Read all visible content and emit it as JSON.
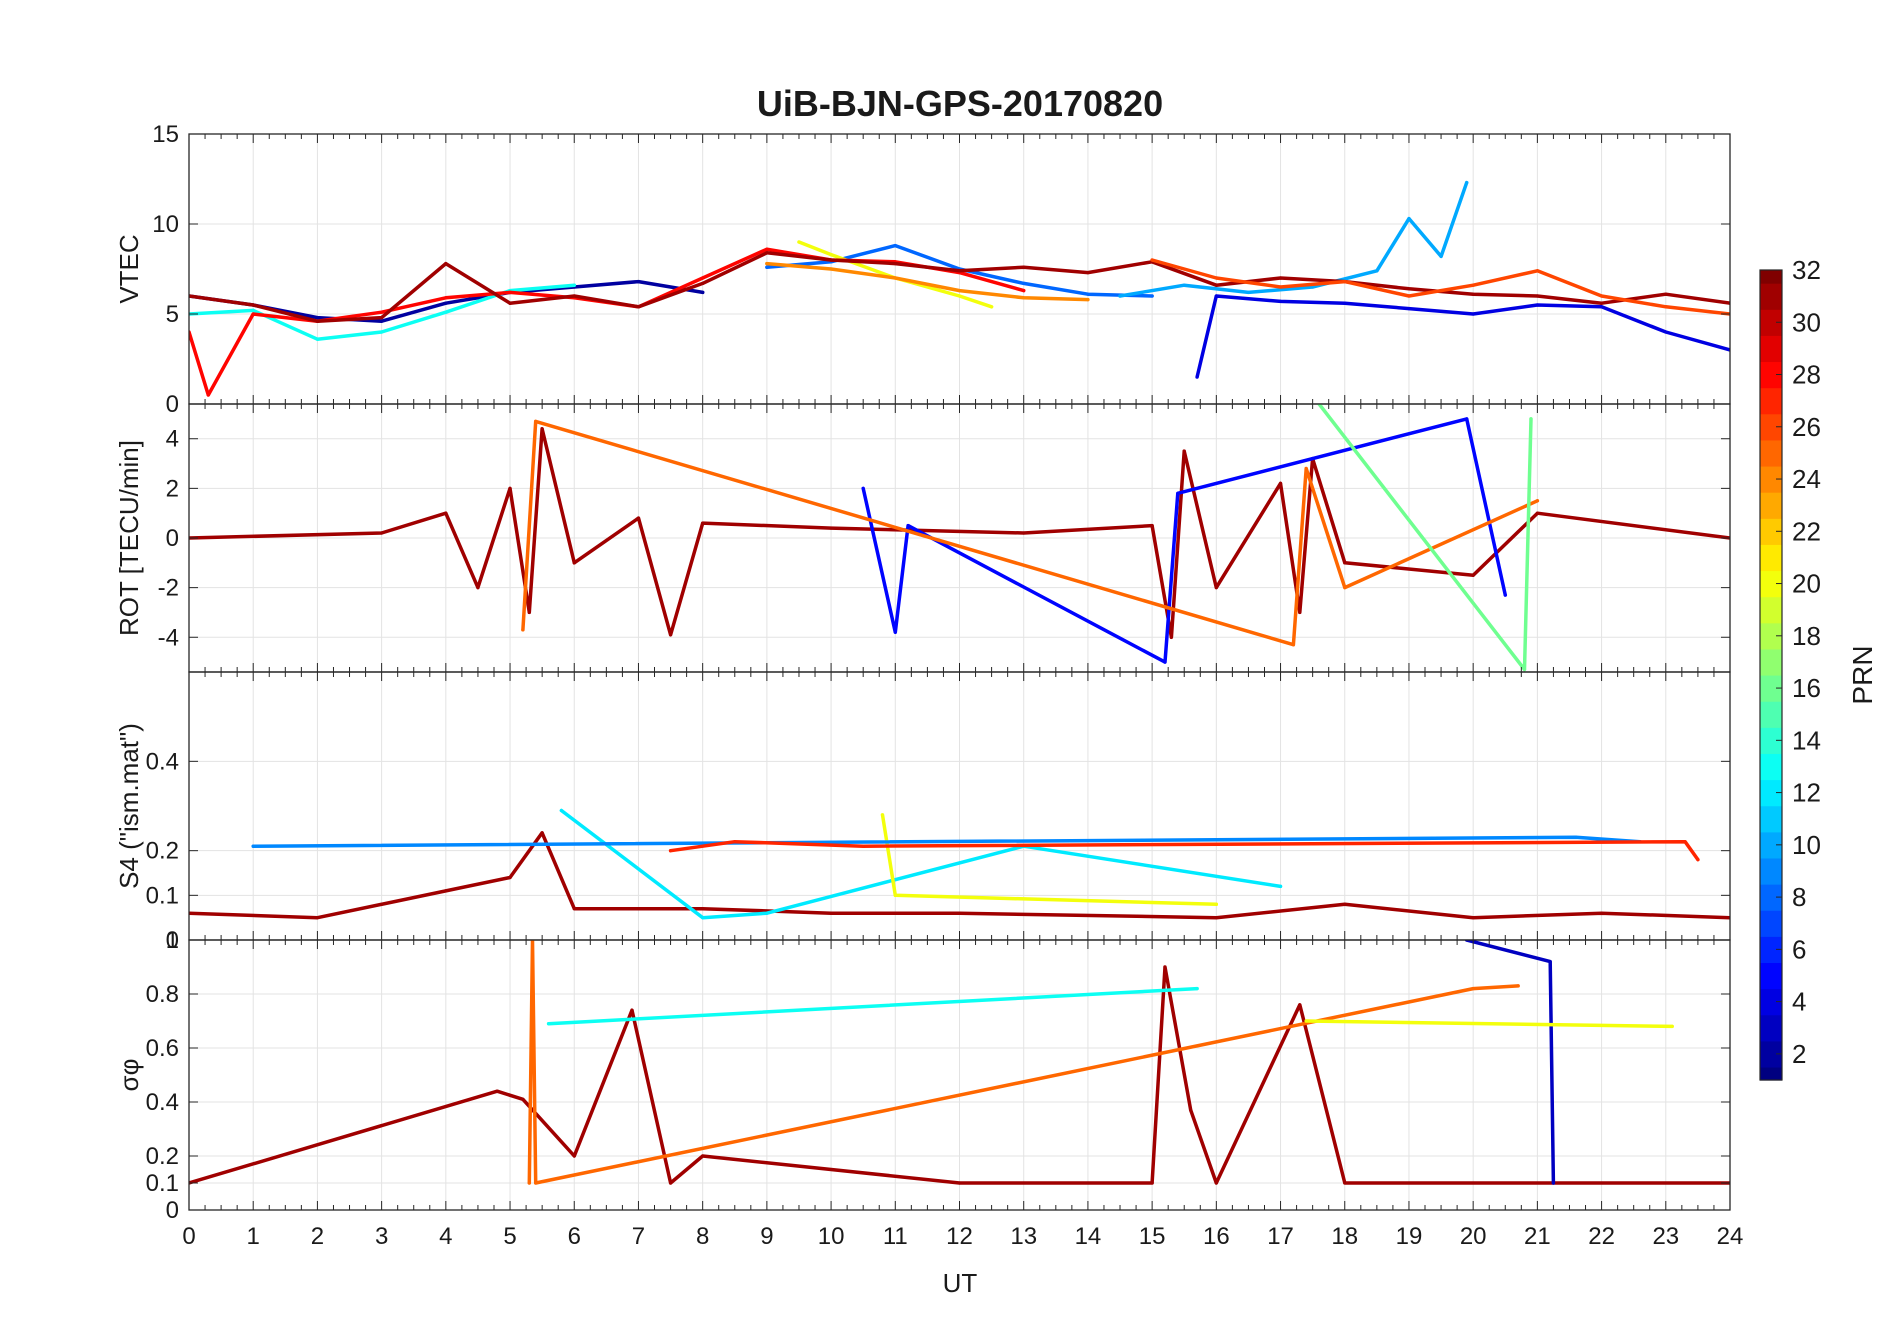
{
  "figure": {
    "title": "UiB-BJN-GPS-20170820",
    "xlabel": "UT",
    "x_ticks": [
      "0",
      "1",
      "2",
      "3",
      "4",
      "5",
      "6",
      "7",
      "8",
      "9",
      "10",
      "11",
      "12",
      "13",
      "14",
      "15",
      "16",
      "17",
      "18",
      "19",
      "20",
      "21",
      "22",
      "23",
      "24"
    ]
  },
  "colorbar": {
    "label": "PRN",
    "range": [
      1,
      32
    ],
    "ticks": [
      "2",
      "4",
      "6",
      "8",
      "10",
      "12",
      "14",
      "16",
      "18",
      "20",
      "22",
      "24",
      "26",
      "28",
      "30",
      "32"
    ],
    "colormap": "jet"
  },
  "chart_data": [
    {
      "type": "line",
      "panel": "vtec",
      "ylabel": "VTEC",
      "xlim": [
        0,
        24
      ],
      "ylim": [
        0,
        15
      ],
      "y_ticks": [
        "0",
        "5",
        "10",
        "15"
      ],
      "grid": true,
      "series": [
        {
          "prn": 2,
          "x": [
            0,
            1,
            2,
            3,
            4,
            5,
            6,
            7,
            8
          ],
          "y": [
            6.0,
            5.5,
            4.8,
            4.6,
            5.6,
            6.2,
            6.5,
            6.8,
            6.2
          ]
        },
        {
          "prn": 8,
          "x": [
            9,
            10,
            11,
            12,
            13,
            14,
            15
          ],
          "y": [
            7.6,
            7.9,
            8.8,
            7.5,
            6.7,
            6.1,
            6.0
          ]
        },
        {
          "prn": 10,
          "x": [
            14.5,
            15.5,
            16.5,
            17.5,
            18.5,
            19.0,
            19.5,
            19.9
          ],
          "y": [
            6.0,
            6.6,
            6.2,
            6.5,
            7.4,
            10.3,
            8.2,
            12.3
          ]
        },
        {
          "prn": 13,
          "x": [
            0,
            1,
            2,
            3,
            4,
            5,
            6
          ],
          "y": [
            5.0,
            5.2,
            3.6,
            4.0,
            5.1,
            6.3,
            6.6
          ]
        },
        {
          "prn": 20,
          "x": [
            9.5,
            10,
            11,
            12,
            12.5
          ],
          "y": [
            9.0,
            8.3,
            7.0,
            6.0,
            5.4
          ]
        },
        {
          "prn": 24,
          "x": [
            9,
            10,
            11,
            12,
            13,
            14
          ],
          "y": [
            7.8,
            7.5,
            7.0,
            6.3,
            5.9,
            5.8
          ]
        },
        {
          "prn": 28,
          "x": [
            0,
            0.3,
            1,
            2,
            3,
            4,
            5,
            6,
            7,
            8,
            9,
            10,
            11,
            12,
            13
          ],
          "y": [
            4.0,
            0.5,
            5.0,
            4.6,
            5.1,
            5.9,
            6.2,
            5.9,
            5.4,
            7.0,
            8.6,
            8.0,
            7.9,
            7.3,
            6.3
          ]
        },
        {
          "prn": 31,
          "x": [
            0,
            1,
            2,
            3,
            4,
            5,
            6,
            7,
            8,
            9,
            10,
            11,
            12,
            13,
            14,
            15,
            16,
            17,
            18,
            19,
            20,
            21,
            22,
            23,
            24
          ],
          "y": [
            6.0,
            5.5,
            4.6,
            4.8,
            7.8,
            5.6,
            6.0,
            5.4,
            6.7,
            8.4,
            8.0,
            7.8,
            7.4,
            7.6,
            7.3,
            7.9,
            6.6,
            7.0,
            6.8,
            6.4,
            6.1,
            6.0,
            5.6,
            6.1,
            5.6
          ]
        },
        {
          "prn": 4,
          "x": [
            15.7,
            16,
            17,
            18,
            19,
            20,
            21,
            22,
            23,
            24
          ],
          "y": [
            1.5,
            6.0,
            5.7,
            5.6,
            5.3,
            5.0,
            5.5,
            5.4,
            4.0,
            3.0
          ]
        },
        {
          "prn": 26,
          "x": [
            15,
            16,
            17,
            18,
            19,
            20,
            21,
            22,
            23,
            24
          ],
          "y": [
            8.0,
            7.0,
            6.5,
            6.8,
            6.0,
            6.6,
            7.4,
            6.0,
            5.4,
            5.0
          ]
        }
      ]
    },
    {
      "type": "line",
      "panel": "rot",
      "ylabel": "ROT [TECU/min]",
      "xlim": [
        0,
        24
      ],
      "ylim": [
        -5.4,
        5.4
      ],
      "y_ticks": [
        "-4",
        "-2",
        "0",
        "2",
        "4"
      ],
      "grid": true,
      "series": [
        {
          "prn": 31,
          "x": [
            0,
            3,
            4,
            4.5,
            5,
            5.3,
            5.5,
            6,
            7,
            7.5,
            8,
            10,
            13,
            15,
            15.3,
            15.5,
            16,
            17,
            17.3,
            17.5,
            18,
            20,
            21,
            24
          ],
          "y": [
            0,
            0.2,
            1.0,
            -2.0,
            2.0,
            -3.0,
            4.4,
            -1.0,
            0.8,
            -3.9,
            0.6,
            0.4,
            0.2,
            0.5,
            -4.0,
            3.5,
            -2.0,
            2.2,
            -3.0,
            3.2,
            -1.0,
            -1.5,
            1.0,
            0
          ]
        },
        {
          "prn": 5,
          "x": [
            10.5,
            11,
            11.2,
            15.2,
            15.4,
            19.9,
            20.5
          ],
          "y": [
            2.0,
            -3.8,
            0.5,
            -5.0,
            1.8,
            4.8,
            -2.3
          ]
        },
        {
          "prn": 25,
          "x": [
            5.2,
            5.4,
            17.2,
            17.4,
            18,
            21
          ],
          "y": [
            -3.7,
            4.7,
            -4.3,
            2.8,
            -2.0,
            1.5
          ]
        },
        {
          "prn": 16,
          "x": [
            17.6,
            20.8,
            20.9
          ],
          "y": [
            5.4,
            -5.3,
            4.8
          ]
        }
      ]
    },
    {
      "type": "line",
      "panel": "s4",
      "ylabel": "S4 (\"ism.mat\")",
      "xlim": [
        0,
        24
      ],
      "ylim": [
        0,
        0.6
      ],
      "y_ticks": [
        "0",
        "0.1",
        "0.2",
        "0.4"
      ],
      "grid": true,
      "series": [
        {
          "prn": 31,
          "x": [
            0,
            2,
            4,
            5,
            5.5,
            6,
            8,
            10,
            12,
            16,
            18,
            20,
            22,
            24
          ],
          "y": [
            0.06,
            0.05,
            0.11,
            0.14,
            0.24,
            0.07,
            0.07,
            0.06,
            0.06,
            0.05,
            0.08,
            0.05,
            0.06,
            0.05
          ]
        },
        {
          "prn": 12,
          "x": [
            5.8,
            8,
            9,
            13,
            17
          ],
          "y": [
            0.29,
            0.05,
            0.06,
            0.21,
            0.12
          ]
        },
        {
          "prn": 20,
          "x": [
            10.8,
            11,
            16
          ],
          "y": [
            0.28,
            0.1,
            0.08
          ]
        },
        {
          "prn": 9,
          "x": [
            1.0,
            21.6,
            22.6
          ],
          "y": [
            0.21,
            0.23,
            0.22
          ]
        },
        {
          "prn": 27,
          "x": [
            7.5,
            8.5,
            10.5,
            23.3,
            23.5
          ],
          "y": [
            0.2,
            0.22,
            0.21,
            0.22,
            0.18
          ]
        }
      ]
    },
    {
      "type": "line",
      "panel": "sigma_phi",
      "ylabel": "σφ",
      "xlim": [
        0,
        24
      ],
      "ylim": [
        0,
        1
      ],
      "y_ticks": [
        "0",
        "0.1",
        "0.2",
        "0.4",
        "0.6",
        "0.8",
        "1"
      ],
      "grid": true,
      "series": [
        {
          "prn": 31,
          "x": [
            0,
            4.8,
            5.2,
            6,
            6.9,
            7.5,
            8,
            12,
            15,
            15.2,
            15.6,
            16,
            17.3,
            18,
            24
          ],
          "y": [
            0.1,
            0.44,
            0.41,
            0.2,
            0.74,
            0.1,
            0.2,
            0.1,
            0.1,
            0.9,
            0.37,
            0.1,
            0.76,
            0.1,
            0.1
          ]
        },
        {
          "prn": 25,
          "x": [
            5.3,
            5.35,
            5.4,
            20.0,
            20.7
          ],
          "y": [
            0.1,
            1.0,
            0.1,
            0.82,
            0.83
          ]
        },
        {
          "prn": 3,
          "x": [
            19.9,
            21.2,
            21.25
          ],
          "y": [
            1.0,
            0.92,
            0.1
          ]
        },
        {
          "prn": 13,
          "x": [
            5.6,
            15.7
          ],
          "y": [
            0.69,
            0.82
          ]
        },
        {
          "prn": 20,
          "x": [
            17.4,
            23.1
          ],
          "y": [
            0.7,
            0.68
          ]
        }
      ]
    }
  ]
}
